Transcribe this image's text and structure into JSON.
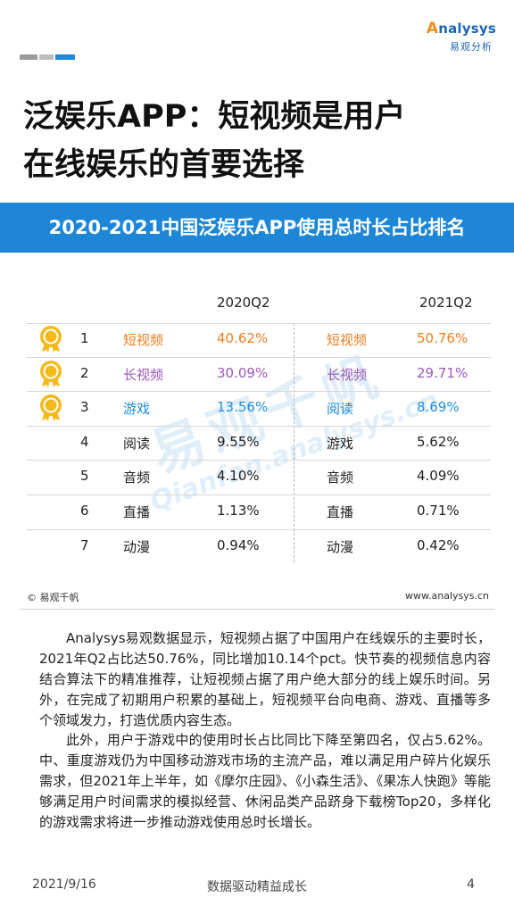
{
  "logo": {
    "word_a": "A",
    "word_rest": "nalysys",
    "sub": "易观分析"
  },
  "heading": {
    "line1": "泛娱乐APP：短视频是用户",
    "line2": "在线娱乐的首要选择"
  },
  "banner": {
    "title": "2020-2021中国泛娱乐APP使用总时长占比排名"
  },
  "table": {
    "headers": [
      "2020Q2",
      "2021Q2"
    ],
    "rows": [
      {
        "rank": "1",
        "cat_2020": "短视频",
        "val_2020": "40.62%",
        "cat_2021": "短视频",
        "val_2021": "50.76%",
        "medal": true
      },
      {
        "rank": "2",
        "cat_2020": "长视频",
        "val_2020": "30.09%",
        "cat_2021": "长视频",
        "val_2021": "29.71%",
        "medal": true
      },
      {
        "rank": "3",
        "cat_2020": "游戏",
        "val_2020": "13.56%",
        "cat_2021": "阅读",
        "val_2021": "8.69%",
        "medal": true
      },
      {
        "rank": "4",
        "cat_2020": "阅读",
        "val_2020": "9.55%",
        "cat_2021": "游戏",
        "val_2021": "5.62%",
        "medal": false
      },
      {
        "rank": "5",
        "cat_2020": "音频",
        "val_2020": "4.10%",
        "cat_2021": "音频",
        "val_2021": "4.09%",
        "medal": false
      },
      {
        "rank": "6",
        "cat_2020": "直播",
        "val_2020": "1.13%",
        "cat_2021": "直播",
        "val_2021": "0.71%",
        "medal": false
      },
      {
        "rank": "7",
        "cat_2020": "动漫",
        "val_2020": "0.94%",
        "cat_2021": "动漫",
        "val_2021": "0.42%",
        "medal": false
      }
    ]
  },
  "watermark": {
    "cn": "易观千帆",
    "en": "Qianfan.analysys.cn"
  },
  "source": {
    "left": "© 易观千帆",
    "right": "www.analysys.cn"
  },
  "body": {
    "p1": "Analysys易观数据显示，短视频占据了中国用户在线娱乐的主要时长，2021年Q2占比达50.76%，同比增加10.14个pct。快节奏的视频信息内容结合算法下的精准推荐，让短视频占据了用户绝大部分的线上娱乐时间。另外，在完成了初期用户积累的基础上，短视频平台向电商、游戏、直播等多个领域发力，打造优质内容生态。",
    "p2": "此外，用户于游戏中的使用时长占比同比下降至第四名，仅占5.62%。中、重度游戏仍为中国移动游戏市场的主流产品，难以满足用户碎片化娱乐需求，但2021年上半年，如《摩尔庄园》、《小森生活》、《果冻人快跑》等能够满足用户时间需求的模拟经营、休闲品类产品跻身下载榜Top20，多样化的游戏需求将进一步推动游戏使用总时长增长。"
  },
  "footer": {
    "date": "2021/9/16",
    "slogan": "数据驱动精益成长",
    "page": "4"
  },
  "colors": {
    "accent": "#1d86d6",
    "orange": "#ef7d22",
    "purple": "#9b58b9",
    "blue": "#1a8ee0",
    "medal": "#f5b91c"
  }
}
